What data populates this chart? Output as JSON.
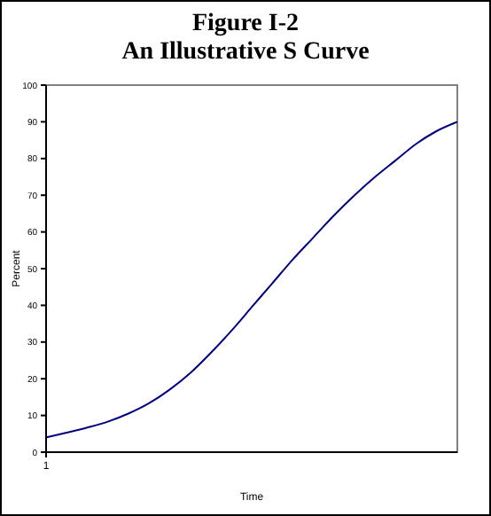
{
  "chart_data": {
    "type": "line",
    "title": "Figure I-2\nAn Illustrative S Curve",
    "xlabel": "Time",
    "ylabel": "Percent",
    "categories": [
      "1",
      null,
      null,
      null,
      null,
      null,
      null,
      null,
      null,
      null,
      null,
      null,
      null,
      null,
      null,
      null,
      null,
      null,
      null,
      null,
      null
    ],
    "series": [
      {
        "color": "#000080",
        "values": [
          4,
          5.3,
          6.7,
          8.3,
          10.5,
          13.3,
          17,
          21.5,
          27,
          33,
          39.5,
          46,
          52.5,
          58.5,
          64.5,
          70,
          75,
          79.5,
          84,
          87.5,
          90
        ]
      }
    ],
    "ylim": [
      0,
      100
    ],
    "yticks": [
      0,
      10,
      20,
      30,
      40,
      50,
      60,
      70,
      80,
      90,
      100
    ],
    "grid": false,
    "marker": "none",
    "line_style": "solid"
  }
}
